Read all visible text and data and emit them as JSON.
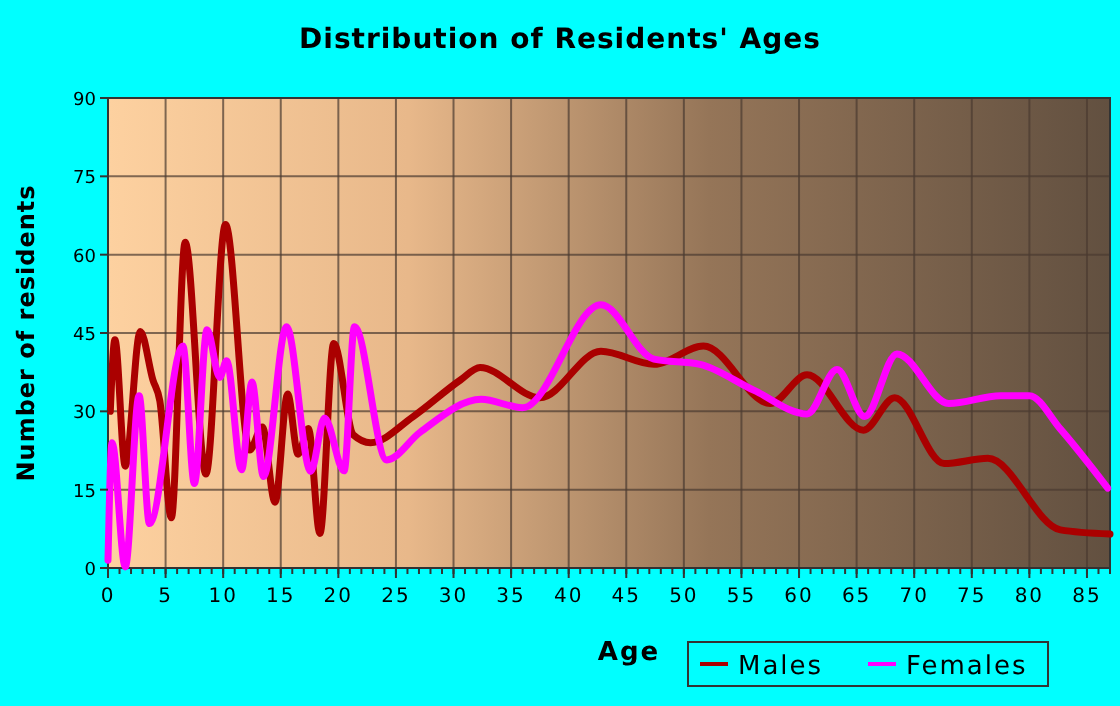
{
  "chart_data": {
    "type": "line",
    "title": "Distribution of Residents' Ages",
    "xlabel": "Age",
    "ylabel": "Number of residents",
    "xlim": [
      0,
      87
    ],
    "xticks": [
      0,
      5,
      10,
      15,
      20,
      25,
      30,
      35,
      40,
      45,
      50,
      55,
      60,
      65,
      70,
      75,
      80,
      85
    ],
    "ylim": [
      0,
      90
    ],
    "yticks": [
      0,
      15,
      30,
      45,
      60,
      75,
      90
    ],
    "grid": true,
    "legend": "bottom right",
    "marker": "none",
    "line_style": "solid",
    "series": [
      {
        "name": "Males",
        "color": "#aa0000",
        "x": [
          0.2,
          0.6,
          1.5,
          2.8,
          3.9,
          4.5,
          5.5,
          6.7,
          8.5,
          10.2,
          12.3,
          13.4,
          14.5,
          15.6,
          16.5,
          17.4,
          18.4,
          19.6,
          21.3,
          22.8,
          26.5,
          30.6,
          32.3,
          37.5,
          42.8,
          47.4,
          51.7,
          57.5,
          60.7,
          65.6,
          68.3,
          72.6,
          76.4,
          82.7,
          87
        ],
        "values": [
          30,
          43.7,
          19.5,
          45.3,
          36,
          32,
          9.6,
          62.4,
          18,
          65.8,
          22.6,
          27,
          12.6,
          33.3,
          21.8,
          26.7,
          6.6,
          43,
          25.5,
          24,
          29,
          36,
          38.4,
          32.6,
          41.5,
          39,
          42.5,
          31.5,
          37,
          26.4,
          32.6,
          20,
          21,
          7.3,
          6.5
        ]
      },
      {
        "name": "Females",
        "color": "#ff00ff",
        "x": [
          0,
          0.35,
          1.5,
          2.7,
          3.6,
          6.5,
          7.5,
          8.6,
          9.7,
          10.3,
          11.6,
          12.5,
          13.5,
          15.5,
          17.6,
          18.8,
          20.5,
          21.4,
          24.2,
          27.1,
          32.4,
          36,
          42.8,
          47.4,
          51.4,
          56.1,
          60.7,
          63.3,
          65.7,
          68.5,
          73,
          77.5,
          80,
          82.7,
          86.8
        ],
        "values": [
          1.5,
          24,
          0.2,
          33,
          8.5,
          42.5,
          16.2,
          45.6,
          36.5,
          39.7,
          18.8,
          35.6,
          17.5,
          46.2,
          18.5,
          28.7,
          18.6,
          46.2,
          20.7,
          26,
          32.3,
          30.7,
          50.4,
          40,
          39,
          34,
          29.5,
          38,
          29,
          41,
          31.5,
          33,
          33,
          26.6,
          15.3
        ]
      }
    ]
  }
}
